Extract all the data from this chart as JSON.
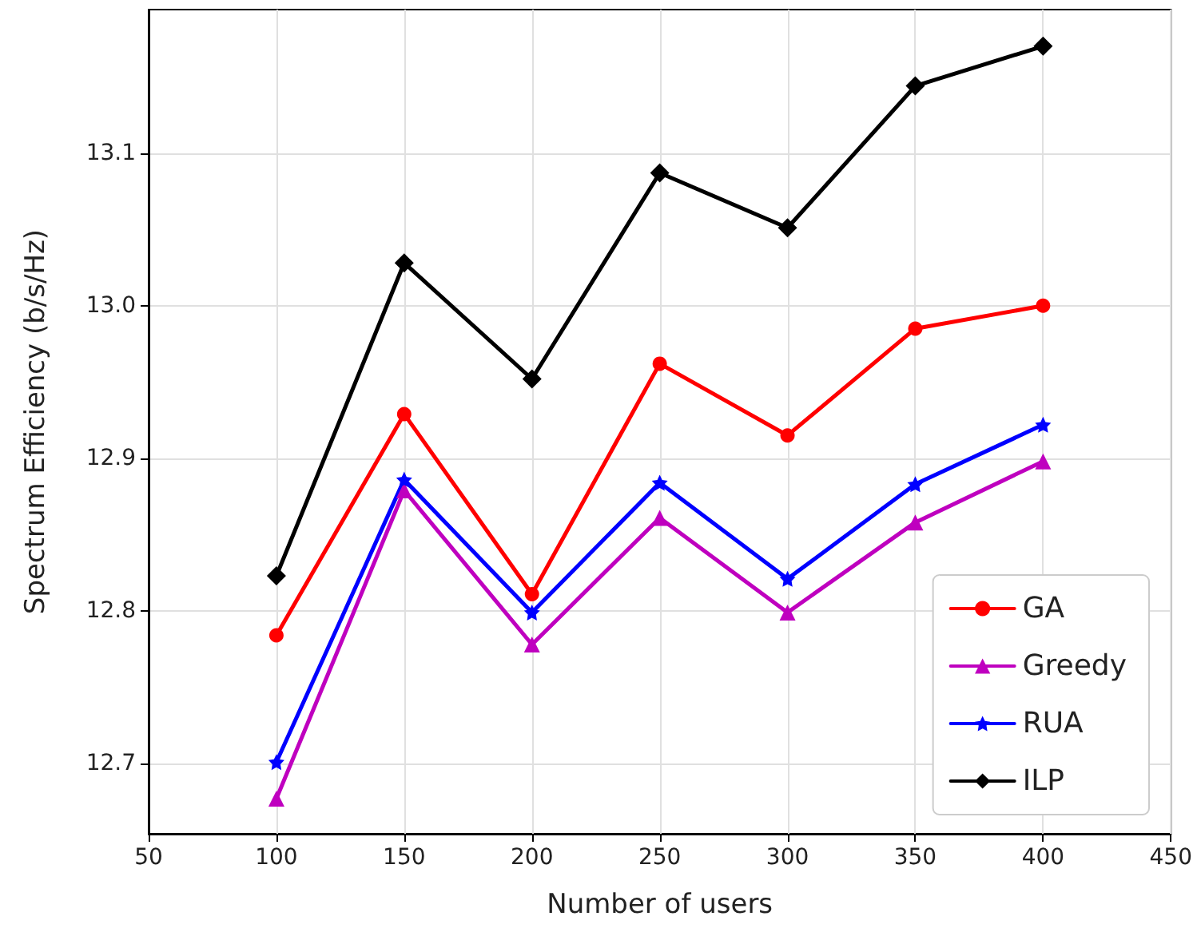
{
  "chart_data": {
    "type": "line",
    "xlabel": "Number of users",
    "ylabel": "Spectrum Efficiency (b/s/Hz)",
    "x": [
      100,
      150,
      200,
      250,
      300,
      350,
      400
    ],
    "series": [
      {
        "name": "GA",
        "color": "#ff0000",
        "marker": "circle",
        "values": [
          12.784,
          12.929,
          12.811,
          12.962,
          12.915,
          12.985,
          13.0
        ]
      },
      {
        "name": "Greedy",
        "color": "#bf00bf",
        "marker": "triangle",
        "values": [
          12.677,
          12.879,
          12.778,
          12.861,
          12.799,
          12.858,
          12.898
        ]
      },
      {
        "name": "RUA",
        "color": "#0000ff",
        "marker": "star",
        "values": [
          12.701,
          12.886,
          12.799,
          12.884,
          12.821,
          12.883,
          12.922
        ]
      },
      {
        "name": "ILP",
        "color": "#000000",
        "marker": "diamond",
        "values": [
          12.823,
          13.028,
          12.952,
          13.087,
          13.051,
          13.144,
          13.17
        ]
      }
    ],
    "xlim": [
      50,
      450
    ],
    "xticks": [
      50,
      100,
      150,
      200,
      250,
      300,
      350,
      400,
      450
    ],
    "ylim": [
      12.654,
      13.194
    ],
    "yticks": [
      {
        "value": 12.7,
        "label": "12.7"
      },
      {
        "value": 12.8,
        "label": "12.8"
      },
      {
        "value": 12.9,
        "label": "12.9"
      },
      {
        "value": 13.0,
        "label": "13.0"
      },
      {
        "value": 13.1,
        "label": "13.1"
      }
    ],
    "grid": true,
    "legend": "bottom right",
    "line_style": "solid"
  }
}
